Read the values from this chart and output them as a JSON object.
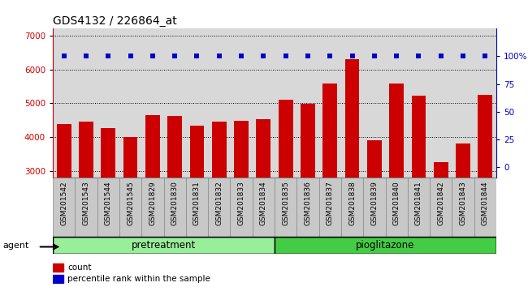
{
  "title": "GDS4132 / 226864_at",
  "categories": [
    "GSM201542",
    "GSM201543",
    "GSM201544",
    "GSM201545",
    "GSM201829",
    "GSM201830",
    "GSM201831",
    "GSM201832",
    "GSM201833",
    "GSM201834",
    "GSM201835",
    "GSM201836",
    "GSM201837",
    "GSM201838",
    "GSM201839",
    "GSM201840",
    "GSM201841",
    "GSM201842",
    "GSM201843",
    "GSM201844"
  ],
  "values": [
    4380,
    4460,
    4260,
    4000,
    4660,
    4620,
    4340,
    4460,
    4490,
    4540,
    5100,
    4980,
    5580,
    6300,
    3920,
    5580,
    5220,
    3270,
    3820,
    5260
  ],
  "bar_color": "#cc0000",
  "percentile_color": "#0000cc",
  "ylim_left": [
    2800,
    7200
  ],
  "ylim_right": [
    -10,
    125
  ],
  "yticks_left": [
    3000,
    4000,
    5000,
    6000,
    7000
  ],
  "yticks_right": [
    0,
    25,
    50,
    75,
    100
  ],
  "group1_label": "pretreatment",
  "group2_label": "pioglitazone",
  "group1_count": 10,
  "group2_count": 10,
  "agent_label": "agent",
  "legend_count_label": "count",
  "legend_percentile_label": "percentile rank within the sample",
  "bar_width": 0.65,
  "plot_bg": "#d8d8d8",
  "group1_bg": "#99ee99",
  "group2_bg": "#44cc44",
  "tick_bg": "#c8c8c8",
  "title_fontsize": 10,
  "tick_fontsize": 7.5
}
